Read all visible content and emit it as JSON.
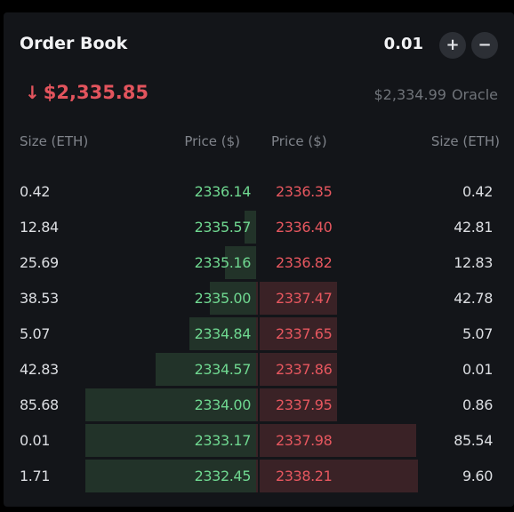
{
  "header": {
    "title": "Order Book",
    "tick_size": "0.01",
    "plus_label": "+",
    "minus_label": "−"
  },
  "market": {
    "direction": "down",
    "direction_icon": "↓",
    "last_price": "$2,335.85",
    "oracle_price": "$2,334.99",
    "oracle_label": "Oracle"
  },
  "columns": {
    "bid_size": "Size (ETH)",
    "bid_price": "Price ($)",
    "ask_price": "Price ($)",
    "ask_size": "Size (ETH)"
  },
  "colors": {
    "bid": "#6fd790",
    "ask": "#e7575f",
    "bid_depth": "#223329",
    "ask_depth": "#3a2226"
  },
  "rows": [
    {
      "bid_size": "0.42",
      "bid_price": "2336.14",
      "ask_price": "2336.35",
      "ask_size": "0.42",
      "bid_depth": 0.0,
      "ask_depth": 0.0
    },
    {
      "bid_size": "12.84",
      "bid_price": "2335.57",
      "ask_price": "2336.40",
      "ask_size": "42.81",
      "bid_depth": 0.07,
      "ask_depth": 0.0
    },
    {
      "bid_size": "25.69",
      "bid_price": "2335.16",
      "ask_price": "2336.82",
      "ask_size": "12.83",
      "bid_depth": 0.18,
      "ask_depth": 0.0
    },
    {
      "bid_size": "38.53",
      "bid_price": "2335.00",
      "ask_price": "2337.47",
      "ask_size": "42.78",
      "bid_depth": 0.27,
      "ask_depth": 0.5
    },
    {
      "bid_size": "5.07",
      "bid_price": "2334.84",
      "ask_price": "2337.65",
      "ask_size": "5.07",
      "bid_depth": 0.39,
      "ask_depth": 0.5
    },
    {
      "bid_size": "42.83",
      "bid_price": "2334.57",
      "ask_price": "2337.86",
      "ask_size": "0.01",
      "bid_depth": 0.59,
      "ask_depth": 0.5
    },
    {
      "bid_size": "85.68",
      "bid_price": "2334.00",
      "ask_price": "2337.95",
      "ask_size": "0.86",
      "bid_depth": 1.0,
      "ask_depth": 0.5
    },
    {
      "bid_size": "0.01",
      "bid_price": "2333.17",
      "ask_price": "2337.98",
      "ask_size": "85.54",
      "bid_depth": 1.0,
      "ask_depth": 0.99
    },
    {
      "bid_size": "1.71",
      "bid_price": "2332.45",
      "ask_price": "2338.21",
      "ask_size": "9.60",
      "bid_depth": 1.0,
      "ask_depth": 1.0
    }
  ]
}
